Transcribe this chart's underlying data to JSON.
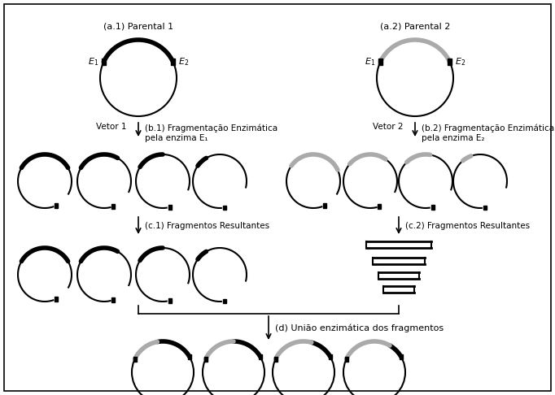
{
  "bg_color": "#ffffff",
  "labels": {
    "a1_title": "(a.1) Parental 1",
    "a2_title": "(a.2) Parental 2",
    "b1_line1": "(b.1) Fragmentação Enzimática",
    "b1_line2": "pela enzima E₁",
    "b2_line1": "(b.2) Fragmentação Enzimática",
    "b2_line2": "pela enzima E₂",
    "c1_title": "(c.1) Fragmentos Resultantes",
    "c2_title": "(c.2) Fragmentos Resultantes",
    "d_title": "(d) União enzimática dos fragmentos",
    "vetor1": "Vetor 1",
    "vetor2": "Vetor 2"
  }
}
